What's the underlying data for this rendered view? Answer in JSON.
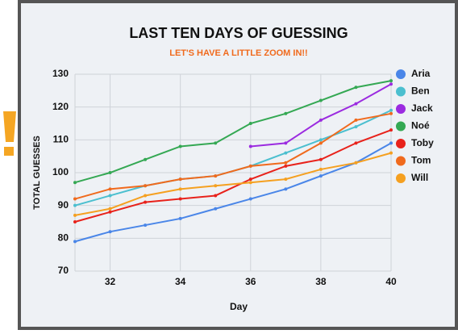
{
  "chart_data": {
    "type": "line",
    "title": "LAST TEN DAYS OF GUESSING",
    "subtitle": "LET'S HAVE A LITTLE ZOOM IN!!",
    "x_label": "Day",
    "y_label": "TOTAL GUESSES",
    "x": [
      31,
      32,
      33,
      34,
      35,
      36,
      37,
      38,
      39,
      40
    ],
    "xlim": [
      31,
      40
    ],
    "xticks": [
      32,
      34,
      36,
      38,
      40
    ],
    "ylim": [
      70,
      130
    ],
    "yticks": [
      70,
      80,
      90,
      100,
      110,
      120,
      130
    ],
    "grid": true,
    "legend": "right",
    "series": [
      {
        "name": "Aria",
        "color": "#4a86e8",
        "values": [
          79,
          82,
          84,
          86,
          89,
          92,
          95,
          99,
          103,
          109
        ]
      },
      {
        "name": "Ben",
        "color": "#4bbfcf",
        "values": [
          90,
          93,
          96,
          98,
          99,
          102,
          106,
          110,
          114,
          119
        ]
      },
      {
        "name": "Jack",
        "color": "#9b2be0",
        "values": [
          null,
          null,
          null,
          null,
          null,
          108,
          109,
          116,
          121,
          127
        ]
      },
      {
        "name": "Noé",
        "color": "#34a853",
        "values": [
          97,
          100,
          104,
          108,
          109,
          115,
          118,
          122,
          126,
          128
        ]
      },
      {
        "name": "Toby",
        "color": "#e8221b",
        "values": [
          85,
          88,
          91,
          92,
          93,
          98,
          102,
          104,
          109,
          113
        ]
      },
      {
        "name": "Tom",
        "color": "#f06a1d",
        "values": [
          92,
          95,
          96,
          98,
          99,
          102,
          103,
          109,
          116,
          118
        ]
      },
      {
        "name": "Will",
        "color": "#f5a020",
        "values": [
          87,
          89,
          93,
          95,
          96,
          97,
          98,
          101,
          103,
          106
        ]
      }
    ]
  }
}
